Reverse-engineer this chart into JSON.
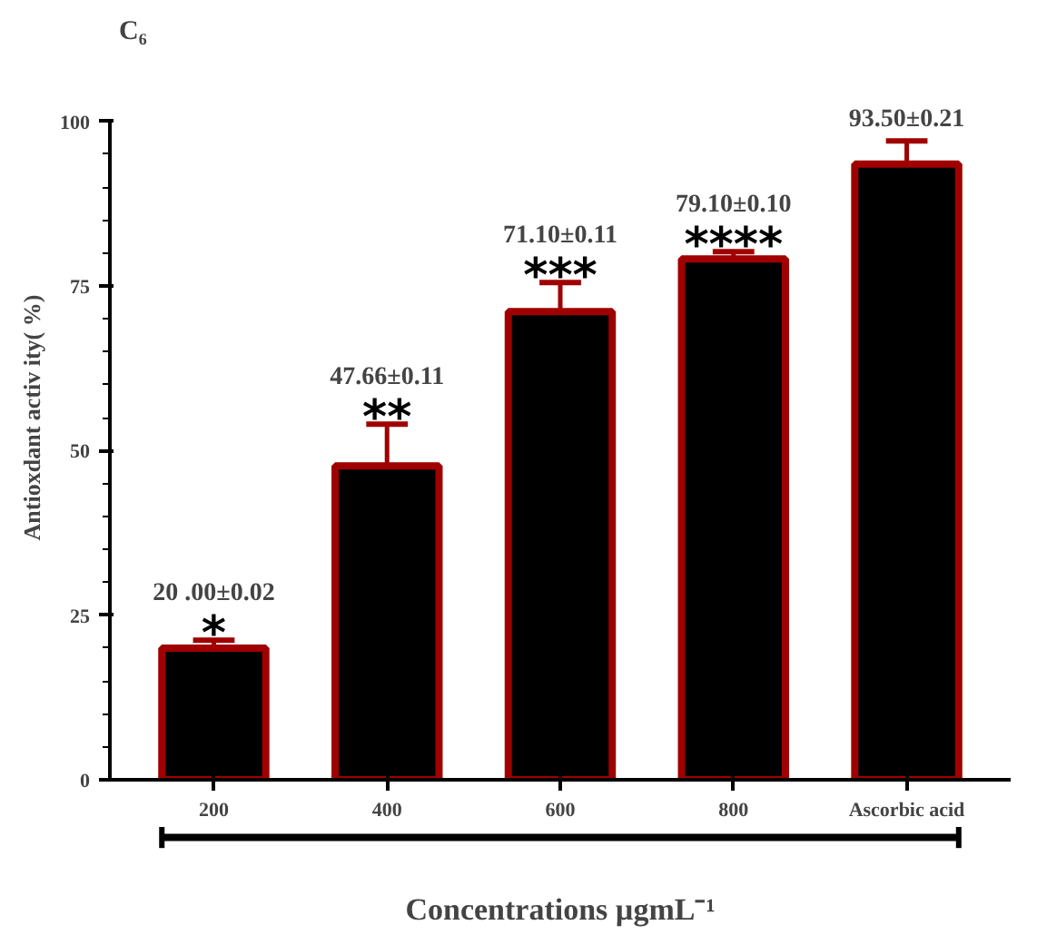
{
  "chart_data": {
    "type": "bar",
    "title": "C₆",
    "xlabel": "Concentrations µgmL⁻¹",
    "ylabel": "Antioxdant activ ity( %)",
    "categories": [
      "200",
      "400",
      "600",
      "800",
      "Ascorbic acid"
    ],
    "values": [
      20.0,
      47.66,
      71.1,
      79.1,
      93.5
    ],
    "errors": [
      [
        20.0,
        21.2
      ],
      [
        47.66,
        54.0
      ],
      [
        71.1,
        75.5
      ],
      [
        79.1,
        80.2
      ],
      [
        93.5,
        97.0
      ]
    ],
    "value_labels": [
      "20 .00±0.02",
      "47.66±0.11",
      "71.10±0.11",
      "79.10±0.10",
      "93.50±0.21"
    ],
    "annotations": [
      {
        "text": "*",
        "x": "200",
        "y": 21.2
      },
      {
        "text": "**",
        "x": "400",
        "y": 54.0
      },
      {
        "text": "***",
        "x": "600",
        "y": 75.5
      },
      {
        "text": "****",
        "x": "800",
        "y": 80.2
      }
    ],
    "color": "#000000",
    "ylim": [
      0,
      100
    ],
    "yticks": [
      0,
      25,
      50,
      75,
      100
    ]
  }
}
